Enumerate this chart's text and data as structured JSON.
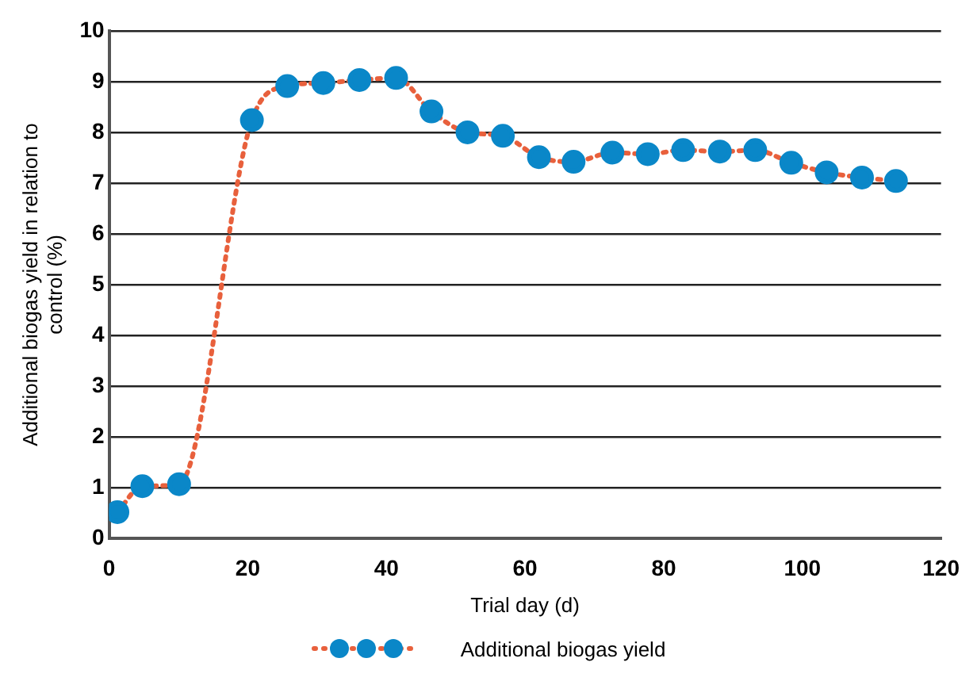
{
  "chart_data": {
    "type": "line",
    "xlabel": "Trial day (d)",
    "ylabel": "Additional biogas yield in relation to control (%)",
    "xlim": [
      0,
      120
    ],
    "xticks": [
      0,
      20,
      40,
      60,
      80,
      100,
      120
    ],
    "ylim": [
      0,
      10
    ],
    "yticks": [
      0,
      1,
      2,
      3,
      4,
      5,
      6,
      7,
      8,
      9,
      10
    ],
    "grid": "y",
    "legend": "bottom",
    "marker": "circle",
    "line_style": "dotted",
    "series": [
      {
        "name": "Additional biogas yield",
        "color": "#e8603c",
        "colors": [
          "#0a87c8",
          "#0a87c8",
          "#0a87c8",
          "#0a87c8",
          "#0a87c8",
          "#0a87c8",
          "#0a87c8",
          "#0a87c8",
          "#0a87c8",
          "#0a87c8",
          "#0a87c8",
          "#0a87c8",
          "#0a87c8",
          "#0a87c8",
          "#0a87c8",
          "#0a87c8",
          "#0a87c8",
          "#0a87c8",
          "#0a87c8",
          "#0a87c8",
          "#0a87c8",
          "#0a87c8"
        ],
        "x": [
          1.2,
          4.8,
          10.1,
          20.6,
          25.7,
          30.9,
          36.1,
          41.4,
          46.5,
          51.7,
          56.8,
          62,
          67,
          72.6,
          77.7,
          82.8,
          88.1,
          93.2,
          98.4,
          103.5,
          108.6,
          113.5
        ],
        "values": [
          0.52,
          1.03,
          1.07,
          8.24,
          8.91,
          8.97,
          9.03,
          9.07,
          8.41,
          8.0,
          7.93,
          7.51,
          7.42,
          7.6,
          7.57,
          7.65,
          7.62,
          7.65,
          7.4,
          7.21,
          7.11,
          7.04
        ]
      }
    ]
  }
}
